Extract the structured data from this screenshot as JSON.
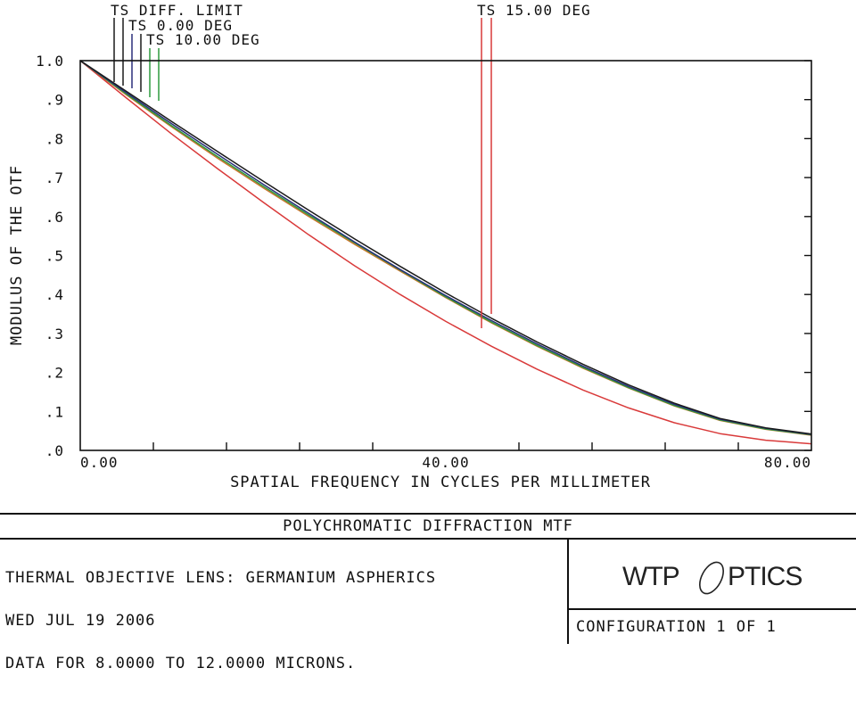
{
  "chart_data": {
    "type": "line",
    "xlabel": "SPATIAL FREQUENCY IN CYCLES PER MILLIMETER",
    "ylabel": "MODULUS OF THE OTF",
    "xlim": [
      0,
      80
    ],
    "ylim": [
      0,
      1
    ],
    "x_tick_labels": [
      "0.00",
      "40.00",
      "80.00"
    ],
    "x_tick_label_values": [
      0,
      40,
      80
    ],
    "x_minor_ticks": [
      8,
      16,
      24,
      32,
      48,
      56,
      64,
      72
    ],
    "y_tick_labels": [
      ".0",
      ".1",
      ".2",
      ".3",
      ".4",
      ".5",
      ".6",
      ".7",
      ".8",
      ".9",
      "1.0"
    ],
    "y_tick_label_values": [
      0,
      0.1,
      0.2,
      0.3,
      0.4,
      0.5,
      0.6,
      0.7,
      0.8,
      0.9,
      1.0
    ],
    "grid": false,
    "legend_position": "top",
    "x": [
      0,
      5,
      10,
      15,
      20,
      25,
      30,
      35,
      40,
      45,
      50,
      55,
      60,
      65,
      70,
      75,
      80
    ],
    "series": [
      {
        "name": "TS DIFF. LIMIT",
        "color": "#1a1a1a",
        "values": [
          1.0,
          0.922,
          0.844,
          0.767,
          0.691,
          0.616,
          0.543,
          0.472,
          0.404,
          0.339,
          0.278,
          0.221,
          0.168,
          0.121,
          0.082,
          0.058,
          0.042
        ]
      },
      {
        "name": "TS 0.00 DEG",
        "color": "#2a2f7a",
        "values": [
          1.0,
          0.918,
          0.838,
          0.76,
          0.683,
          0.608,
          0.535,
          0.464,
          0.397,
          0.333,
          0.273,
          0.216,
          0.164,
          0.118,
          0.08,
          0.057,
          0.041
        ]
      },
      {
        "name": "TS 10.00 DEG",
        "color": "#2e9a3e",
        "values": [
          1.0,
          0.915,
          0.833,
          0.754,
          0.678,
          0.604,
          0.533,
          0.463,
          0.394,
          0.329,
          0.269,
          0.213,
          0.161,
          0.115,
          0.078,
          0.055,
          0.04
        ]
      },
      {
        "name": "TS 15.00 DEG",
        "color": "#d93a3a",
        "values": [
          1.0,
          0.905,
          0.812,
          0.723,
          0.637,
          0.553,
          0.474,
          0.4,
          0.331,
          0.267,
          0.208,
          0.155,
          0.109,
          0.071,
          0.043,
          0.026,
          0.017
        ]
      },
      {
        "name": "",
        "color": "#c8742a",
        "values": [
          1.0,
          0.913,
          0.83,
          0.75,
          0.674,
          0.6,
          0.529,
          0.46,
          0.392,
          0.327,
          0.267,
          0.211,
          0.16,
          0.114,
          0.077,
          0.054,
          0.039
        ]
      }
    ],
    "legend_label_colors": [
      "#1a1a1a",
      "#2a2f7a",
      "#2e9a3e",
      "#d93a3a"
    ]
  },
  "title_block": {
    "title": "POLYCHROMATIC DIFFRACTION MTF",
    "line1": "THERMAL OBJECTIVE LENS: GERMANIUM ASPHERICS",
    "line2": "WED JUL 19 2006",
    "line3": "DATA FOR 8.0000 TO 12.0000 MICRONS.",
    "logo_left": "WTP",
    "logo_right": "PTICS",
    "configuration": "CONFIGURATION  1  OF  1"
  }
}
